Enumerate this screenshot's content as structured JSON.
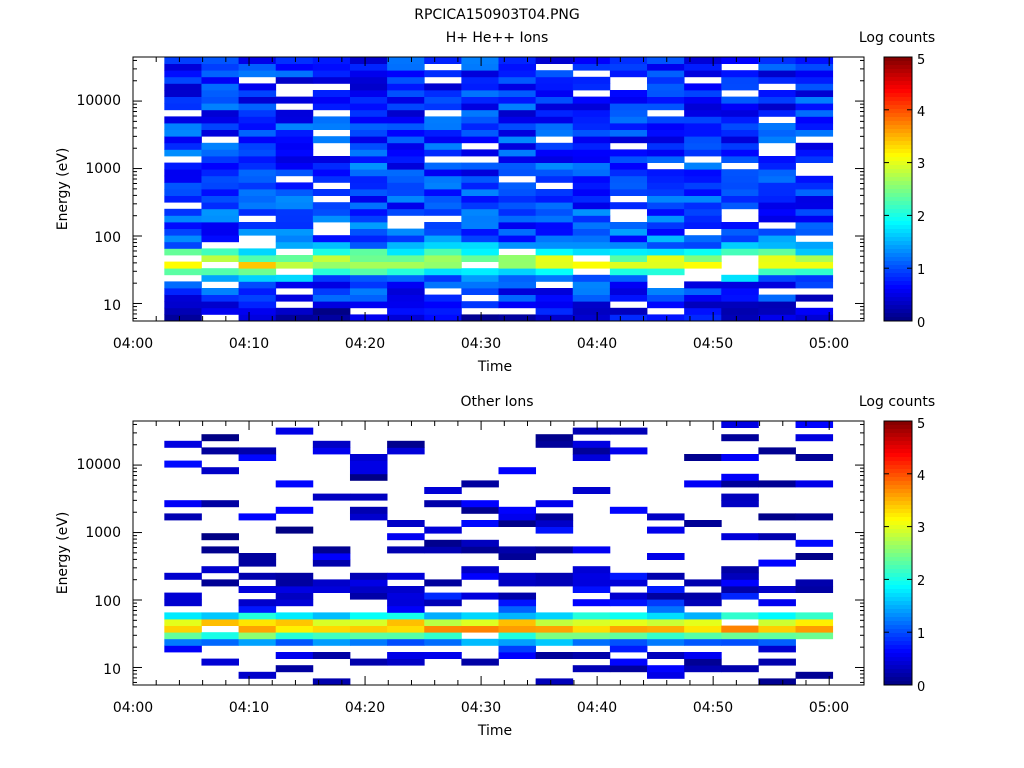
{
  "figure_title": "RPCICA150903T04.PNG",
  "colors": {
    "axis": "#000000",
    "background": "#ffffff",
    "colormap": [
      "#00007f",
      "#0000ff",
      "#007fff",
      "#00ffff",
      "#7fff7f",
      "#ffff00",
      "#ff7f00",
      "#ff0000",
      "#7f0000"
    ]
  },
  "chart_data": [
    {
      "type": "heatmap",
      "title": "H+ He++ Ions",
      "xlabel": "Time",
      "ylabel": "Energy (eV)",
      "colorbar_label": "Log counts",
      "x_tick_labels": [
        "04:00",
        "04:10",
        "04:20",
        "04:30",
        "04:40",
        "04:50",
        "05:00"
      ],
      "y_tick_labels": [
        "10",
        "100",
        "1000",
        "10000"
      ],
      "colorbar_tick_labels": [
        "0",
        "1",
        "2",
        "3",
        "4",
        "5"
      ],
      "xlim_minutes": [
        0,
        63
      ],
      "ylim_eV": [
        5.5,
        45000
      ],
      "clim": [
        0,
        5
      ],
      "yscale": "log",
      "x_start_minutes": 2.7,
      "sweep_minutes": 3.2,
      "sweeps": 18,
      "profile": [
        [
          8,
          0.4
        ],
        [
          10,
          0.6
        ],
        [
          14,
          0.8
        ],
        [
          20,
          0.9
        ],
        [
          26,
          1.5
        ],
        [
          32,
          2.4
        ],
        [
          40,
          3.2
        ],
        [
          50,
          2.5
        ],
        [
          70,
          1.4
        ],
        [
          100,
          1.0
        ],
        [
          300,
          0.9
        ],
        [
          1000,
          0.9
        ],
        [
          10000,
          0.8
        ],
        [
          45000,
          0.8
        ]
      ],
      "gap_fraction": 0.12
    },
    {
      "type": "heatmap",
      "title": "Other Ions",
      "xlabel": "Time",
      "ylabel": "Energy (eV)",
      "colorbar_label": "Log counts",
      "x_tick_labels": [
        "04:00",
        "04:10",
        "04:20",
        "04:30",
        "04:40",
        "04:50",
        "05:00"
      ],
      "y_tick_labels": [
        "10",
        "100",
        "1000",
        "10000"
      ],
      "colorbar_tick_labels": [
        "0",
        "1",
        "2",
        "3",
        "4",
        "5"
      ],
      "xlim_minutes": [
        0,
        63
      ],
      "ylim_eV": [
        5.5,
        45000
      ],
      "clim": [
        0,
        5
      ],
      "yscale": "log",
      "x_start_minutes": 2.7,
      "sweep_minutes": 3.2,
      "sweeps": 18,
      "profile": [
        [
          8,
          0.25
        ],
        [
          12,
          0.35
        ],
        [
          18,
          0.5
        ],
        [
          24,
          1.3
        ],
        [
          30,
          2.3
        ],
        [
          38,
          3.6
        ],
        [
          46,
          3.2
        ],
        [
          56,
          2.0
        ],
        [
          70,
          0.9
        ],
        [
          100,
          0.5
        ],
        [
          200,
          0.4
        ],
        [
          45000,
          0.3
        ]
      ],
      "gap_fraction": 0.75
    }
  ]
}
